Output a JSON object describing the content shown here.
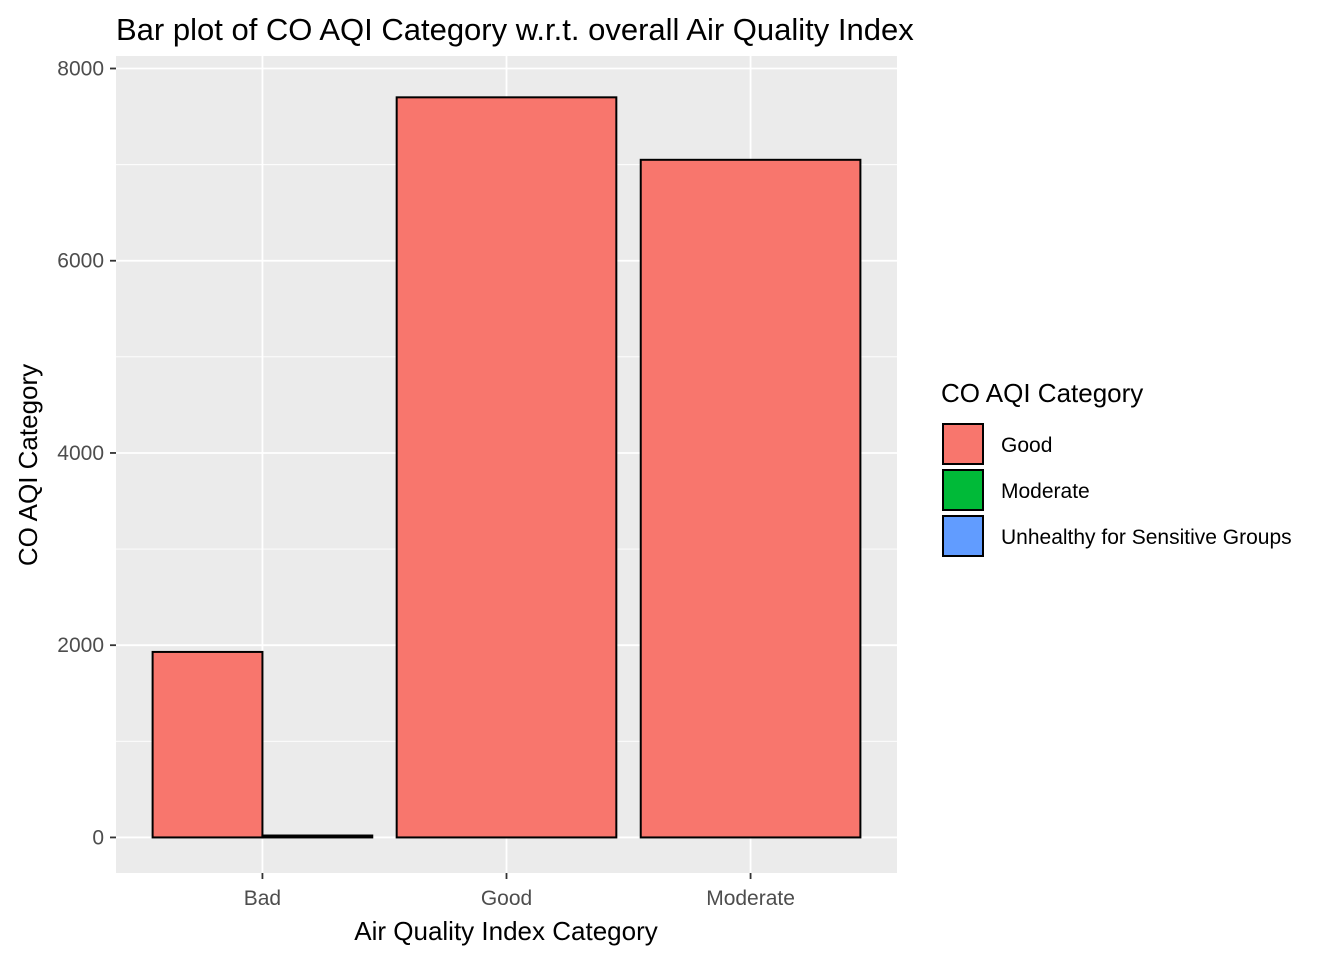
{
  "chart_data": {
    "type": "bar",
    "title": "Bar plot of CO AQI Category w.r.t. overall Air Quality Index",
    "xlabel": "Air Quality Index Category",
    "ylabel": "CO AQI Category",
    "categories": [
      "Bad",
      "Good",
      "Moderate"
    ],
    "ylim": [
      -370,
      8130
    ],
    "yticks": [
      0,
      2000,
      4000,
      6000,
      8000
    ],
    "yticks_text": [
      "0",
      "2000",
      "4000",
      "6000",
      "8000"
    ],
    "grid": true,
    "bar_position": "dodge",
    "panel_color": "#ebebeb",
    "bar_outline_color": "#000000",
    "series": [
      {
        "name": "Good",
        "color": "#F8766D",
        "values": [
          1930,
          7700,
          7050
        ]
      },
      {
        "name": "Moderate",
        "color": "#00BA38",
        "values": [
          20,
          null,
          null
        ]
      },
      {
        "name": "Unhealthy for Sensitive Groups",
        "color": "#619CFF",
        "values": [
          null,
          null,
          null
        ]
      }
    ],
    "legend": {
      "title": "CO AQI Category",
      "position": "right",
      "entries": [
        "Good",
        "Moderate",
        "Unhealthy for Sensitive Groups"
      ]
    }
  }
}
